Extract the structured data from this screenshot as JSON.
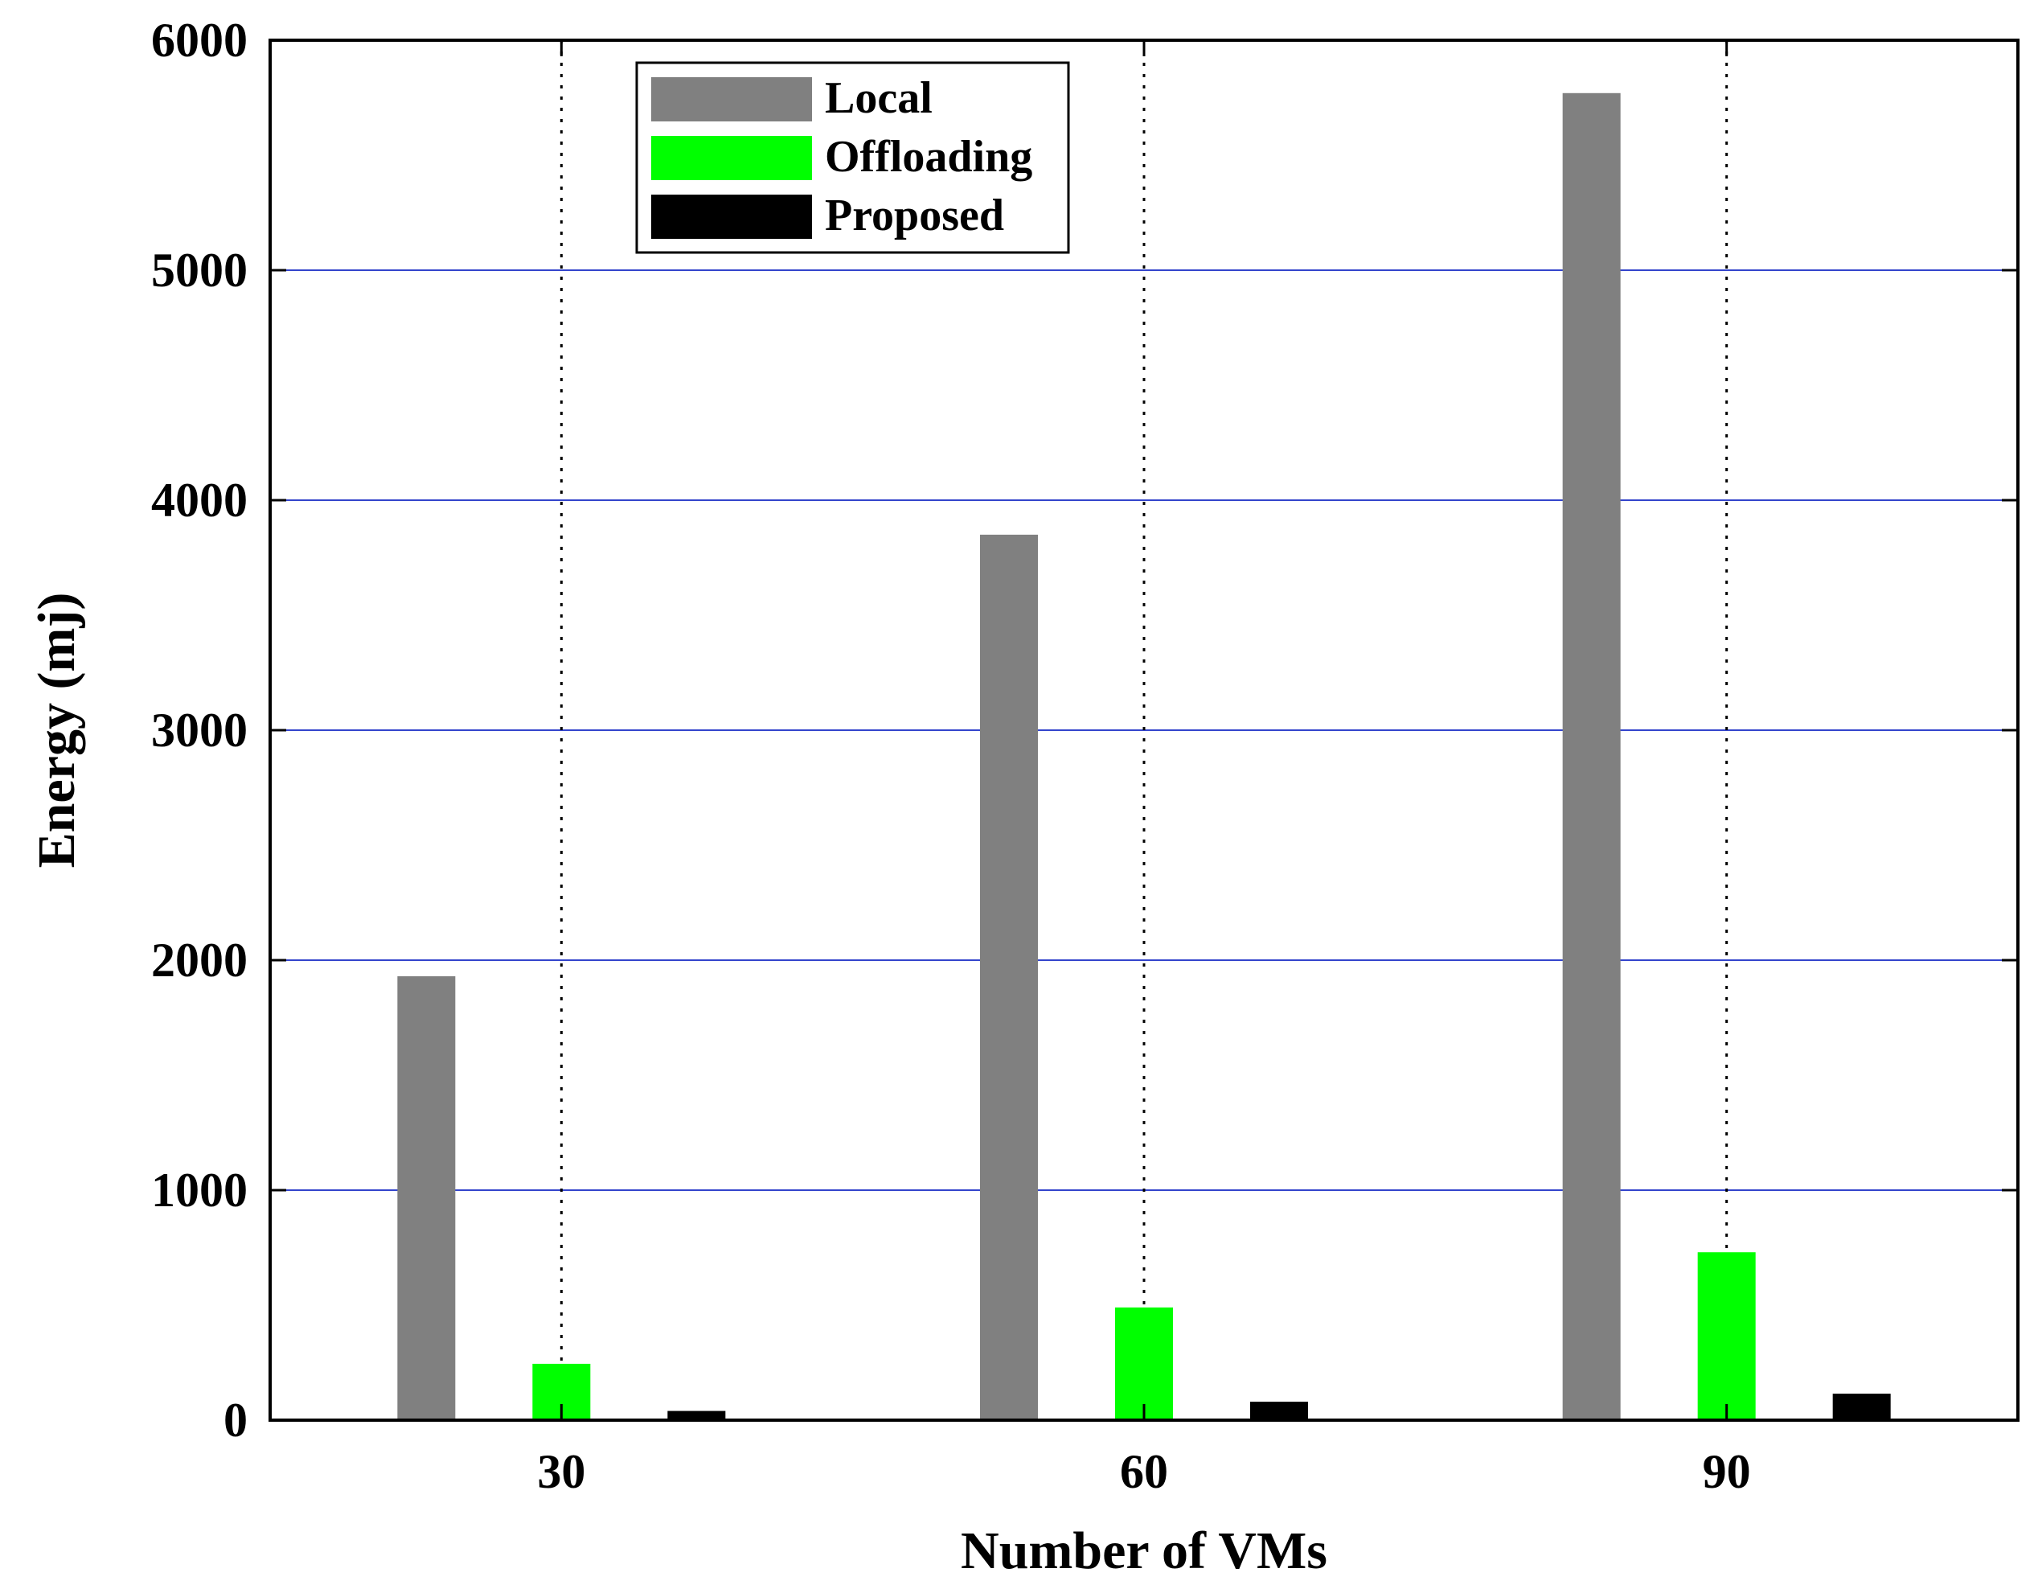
{
  "chart_data": {
    "type": "bar",
    "title": "",
    "xlabel": "Number of VMs",
    "ylabel": "Energy (mj)",
    "categories": [
      "30",
      "60",
      "90"
    ],
    "series": [
      {
        "name": "Local",
        "color": "#808080",
        "values": [
          1930,
          3850,
          5770
        ]
      },
      {
        "name": "Offloading",
        "color": "#00ff00",
        "values": [
          245,
          490,
          730
        ]
      },
      {
        "name": "Proposed",
        "color": "#000000",
        "values": [
          40,
          80,
          115
        ]
      }
    ],
    "ylim": [
      0,
      6000
    ],
    "yticks": [
      0,
      1000,
      2000,
      3000,
      4000,
      5000,
      6000
    ],
    "grid": true,
    "legend_position": "top-left"
  }
}
